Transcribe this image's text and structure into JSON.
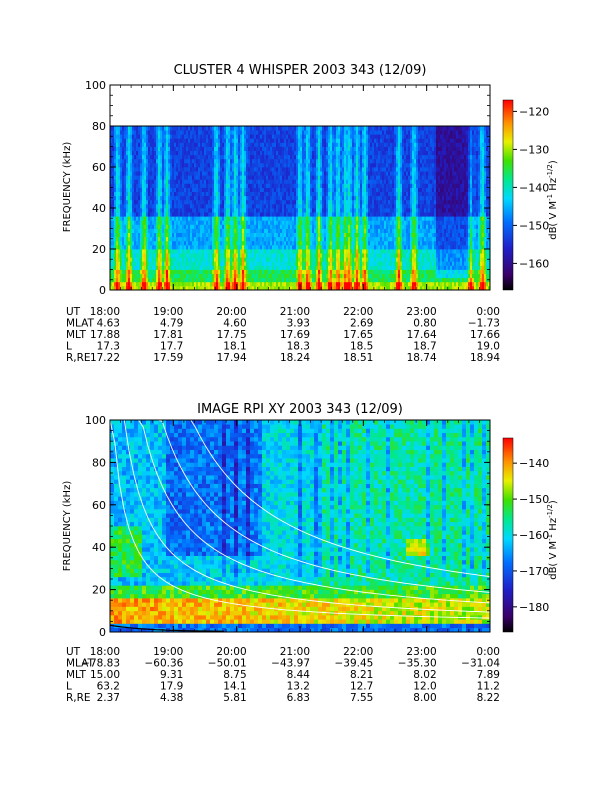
{
  "chart_data": [
    {
      "type": "heatmap",
      "title": "CLUSTER 4 WHISPER 2003 343 (12/09)",
      "ylabel": "FREQUENCY (kHz)",
      "ylim": [
        0,
        100
      ],
      "yticks": [
        "0",
        "20",
        "40",
        "60",
        "80",
        "100"
      ],
      "data_max_frequency": 80,
      "colorbar": {
        "label": "dB( V M⁻¹ Hz⁻¹ᐟ²)",
        "label_parts": [
          "dB( V M",
          "-1",
          " Hz",
          "-1/2",
          ")"
        ],
        "range": [
          -167,
          -117
        ],
        "ticks": [
          "-120",
          "-130",
          "-140",
          "-150",
          "-160"
        ]
      },
      "ephemeris": {
        "rows": [
          {
            "label": "UT",
            "values": [
              "18:00",
              "19:00",
              "20:00",
              "21:00",
              "22:00",
              "23:00",
              "0:00"
            ]
          },
          {
            "label": "MLAT",
            "values": [
              "4.63",
              "4.79",
              "4.60",
              "3.93",
              "2.69",
              "0.80",
              "-1.73"
            ]
          },
          {
            "label": "MLT",
            "values": [
              "17.88",
              "17.81",
              "17.75",
              "17.69",
              "17.65",
              "17.64",
              "17.66"
            ]
          },
          {
            "label": "L",
            "values": [
              "17.3",
              "17.7",
              "18.1",
              "18.3",
              "18.5",
              "18.7",
              "19.0"
            ]
          },
          {
            "label": "R,RE",
            "values": [
              "17.22",
              "17.59",
              "17.94",
              "18.24",
              "18.51",
              "18.74",
              "18.94"
            ]
          }
        ]
      }
    },
    {
      "type": "heatmap",
      "title": "IMAGE RPI XY 2003 343 (12/09)",
      "ylabel": "FREQUENCY (kHz)",
      "ylim": [
        0,
        100
      ],
      "yticks": [
        "0",
        "20",
        "40",
        "60",
        "80",
        "100"
      ],
      "colorbar": {
        "label_parts": [
          "dB( V M",
          "-1",
          " Hz",
          "-1/2",
          ")"
        ],
        "range": [
          -187,
          -133
        ],
        "ticks": [
          "-140",
          "-150",
          "-160",
          "-170",
          "-180"
        ]
      },
      "ephemeris": {
        "rows": [
          {
            "label": "UT",
            "values": [
              "18:00",
              "19:00",
              "20:00",
              "21:00",
              "22:00",
              "23:00",
              "0:00"
            ]
          },
          {
            "label": "MLAT",
            "values": [
              "-78.83",
              "-60.36",
              "-50.01",
              "-43.97",
              "-39.45",
              "-35.30",
              "-31.04"
            ]
          },
          {
            "label": "MLT",
            "values": [
              "15.00",
              "9.31",
              "8.75",
              "8.44",
              "8.21",
              "8.02",
              "7.89"
            ]
          },
          {
            "label": "L",
            "values": [
              "63.2",
              "17.9",
              "14.1",
              "13.2",
              "12.7",
              "12.0",
              "11.2"
            ]
          },
          {
            "label": "R,RE",
            "values": [
              "2.37",
              "4.38",
              "5.81",
              "6.83",
              "7.55",
              "8.00",
              "8.22"
            ]
          }
        ]
      }
    }
  ]
}
